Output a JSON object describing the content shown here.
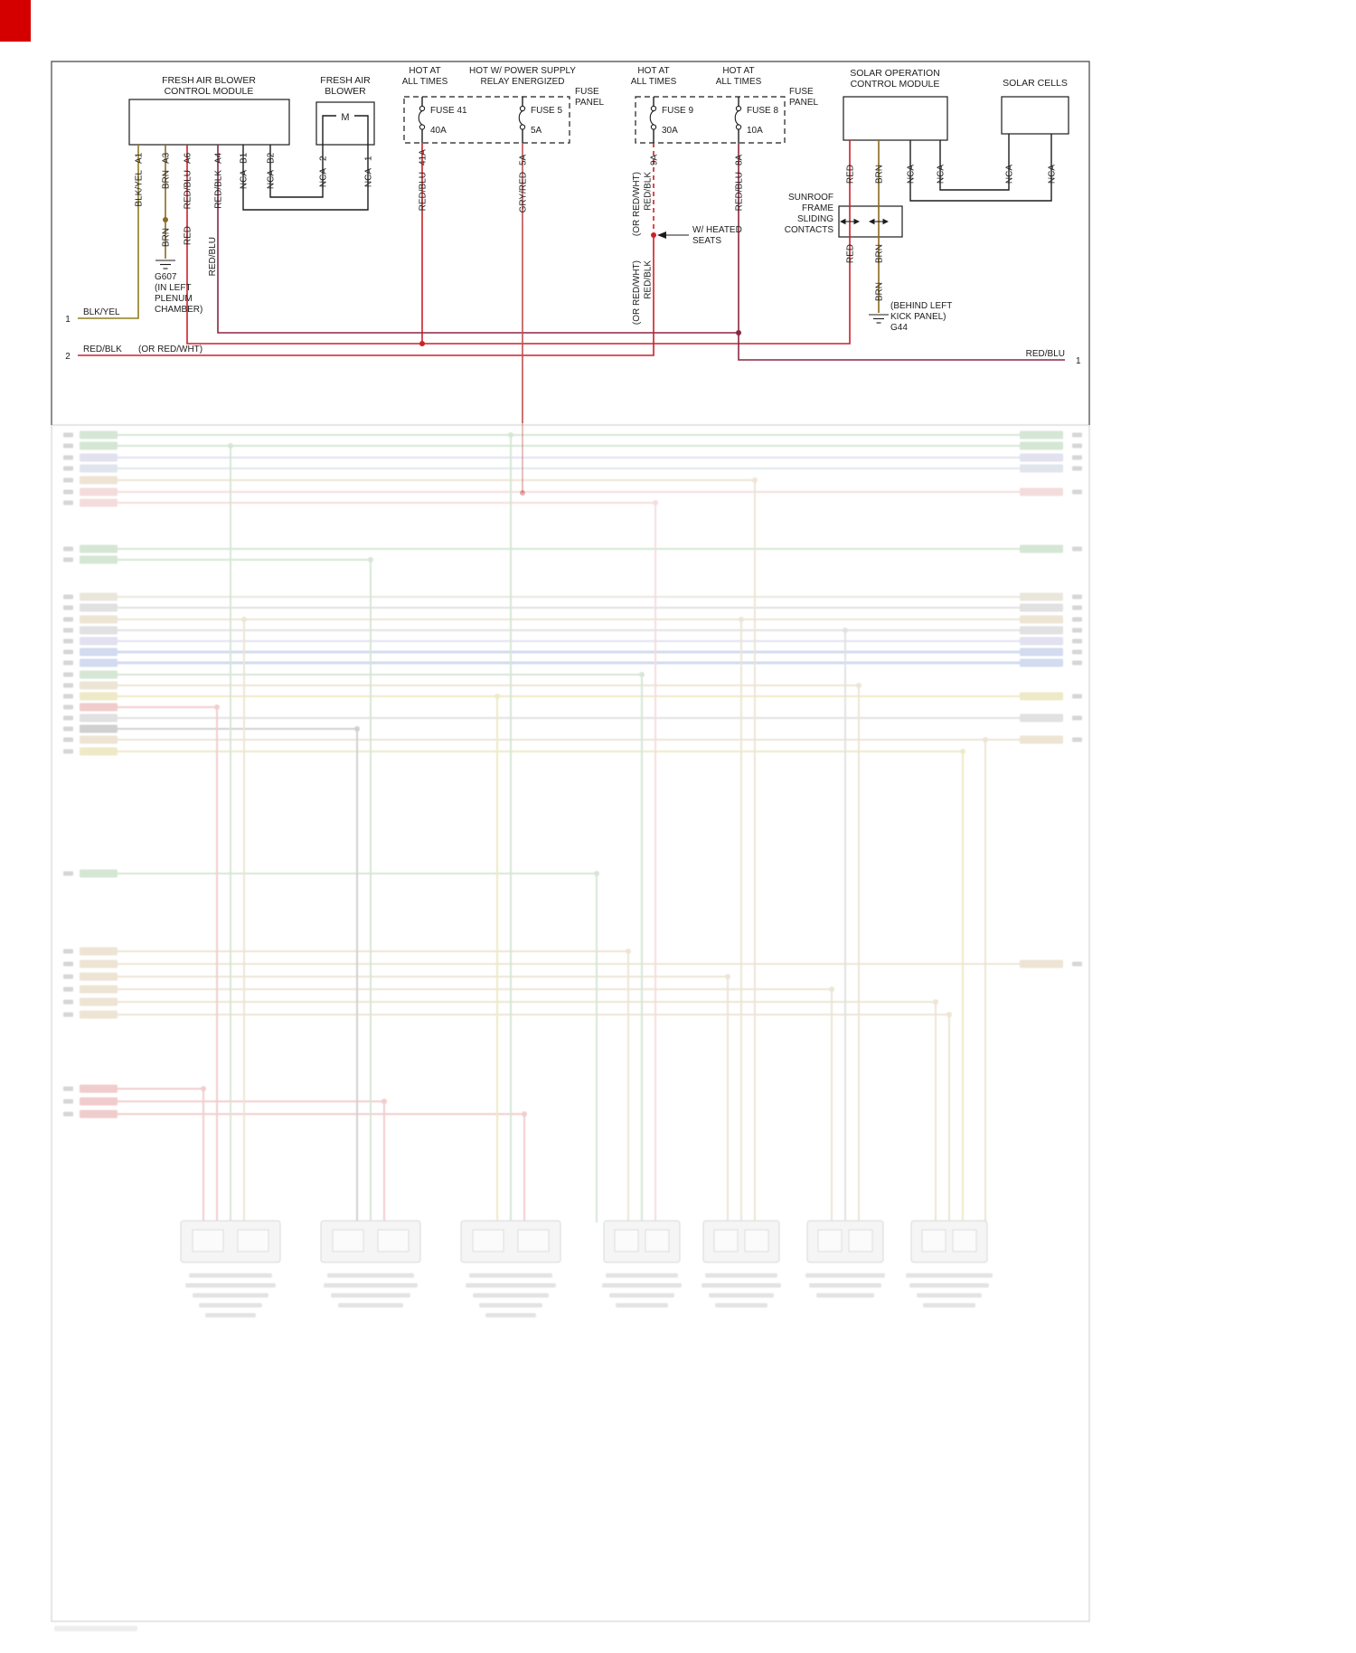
{
  "palette": {
    "wire_black": "#1c1c1c",
    "wire_red": "#cc2128",
    "wire_maroon": "#8c2742",
    "wire_olive": "#8f7d1f",
    "wire_brown": "#8a6b1e",
    "wire_gryred": "#c05050",
    "corner_red": "#d40000",
    "f_green": "#86b886",
    "f_lav": "#a9a9d6",
    "f_bgray": "#a6b6cc",
    "f_tan": "#ccb184",
    "f_tan2": "#c2b89a",
    "f_pink": "#e49a9a",
    "f_red": "#d96c6c",
    "f_gray": "#a9a9a9",
    "f_dark": "#777777",
    "f_blue": "#7d97d6",
    "f_yellow": "#cfc25e"
  },
  "labels": {
    "facm_title1": "FRESH AIR BLOWER",
    "facm_title2": "CONTROL MODULE",
    "facm_pin_a1": "A1",
    "facm_pin_a3": "A3",
    "facm_pin_a6": "A6",
    "facm_pin_a4": "A4",
    "facm_pin_b1": "B1",
    "facm_pin_b2": "B2",
    "facm_wire_a1": "BLK/YEL",
    "facm_wire_a3": "BRN",
    "facm_wire_a6": "RED/BLU",
    "facm_wire_a4": "RED/BLK",
    "facm_wire_b1": "NCA",
    "facm_wire_b2": "NCA",
    "fab_title1": "FRESH AIR",
    "fab_title2": "BLOWER",
    "fab_motor": "M",
    "fab_pin_2": "2",
    "fab_pin_1": "1",
    "fab_wire_2": "NCA",
    "fab_wire_1": "NCA",
    "hot41_1": "HOT AT",
    "hot41_2": "ALL TIMES",
    "hot5_1": "HOT W/ POWER SUPPLY",
    "hot5_2": "RELAY ENERGIZED",
    "fusepanel1_1": "FUSE",
    "fusepanel1_2": "PANEL",
    "hot9_1": "HOT AT",
    "hot9_2": "ALL TIMES",
    "hot8_1": "HOT AT",
    "hot8_2": "ALL TIMES",
    "fusepanel2_1": "FUSE",
    "fusepanel2_2": "PANEL",
    "fuse41": "FUSE 41",
    "fuse41_amp": "40A",
    "fuse41_pin": "41A",
    "fuse41_wire": "RED/BLU",
    "fuse5": "FUSE 5",
    "fuse5_amp": "5A",
    "fuse5_pin": "5A",
    "fuse5_wire": "GRY/RED",
    "fuse9": "FUSE 9",
    "fuse9_amp": "30A",
    "fuse9_pin": "9A",
    "fuse9_wire_or": "(OR RED/WHT)",
    "fuse9_wire": "RED/BLK",
    "fuse9_wire_or2": "(OR RED/WHT)",
    "fuse9_wire2": "RED/BLK",
    "fuse8": "FUSE 8",
    "fuse8_amp": "10A",
    "fuse8_pin": "8A",
    "fuse8_wire": "RED/BLU",
    "brn_mid": "BRN",
    "red_mid": "RED",
    "redblu_mid": "RED/BLU",
    "g607": "G607",
    "g607_loc1": "(IN LEFT",
    "g607_loc2": "PLENUM",
    "g607_loc3": "CHAMBER)",
    "heated1": "W/ HEATED",
    "heated2": "SEATS",
    "sunroof1": "SUNROOF",
    "sunroof2": "FRAME",
    "sunroof3": "SLIDING",
    "sunroof4": "CONTACTS",
    "socm_title1": "SOLAR OPERATION",
    "socm_title2": "CONTROL MODULE",
    "socm_wire_red": "RED",
    "socm_wire_brn": "BRN",
    "socm_wire_nca1": "NCA",
    "socm_wire_nca2": "NCA",
    "contacts_red_lower": "RED",
    "contacts_brn_lower": "BRN",
    "brn_lower": "BRN",
    "g44": "G44",
    "g44_loc1": "(BEHIND LEFT",
    "g44_loc2": "KICK PANEL)",
    "cells_title": "SOLAR CELLS",
    "cells_wire_1": "NCA",
    "cells_wire_2": "NCA",
    "edge_l1_num": "1",
    "edge_l1_label": "BLK/YEL",
    "edge_l2_num": "2",
    "edge_l2_label": "RED/BLK",
    "edge_l2_label2": "(OR RED/WHT)",
    "edge_r1_label": "RED/BLU",
    "edge_r1_num": "1"
  }
}
